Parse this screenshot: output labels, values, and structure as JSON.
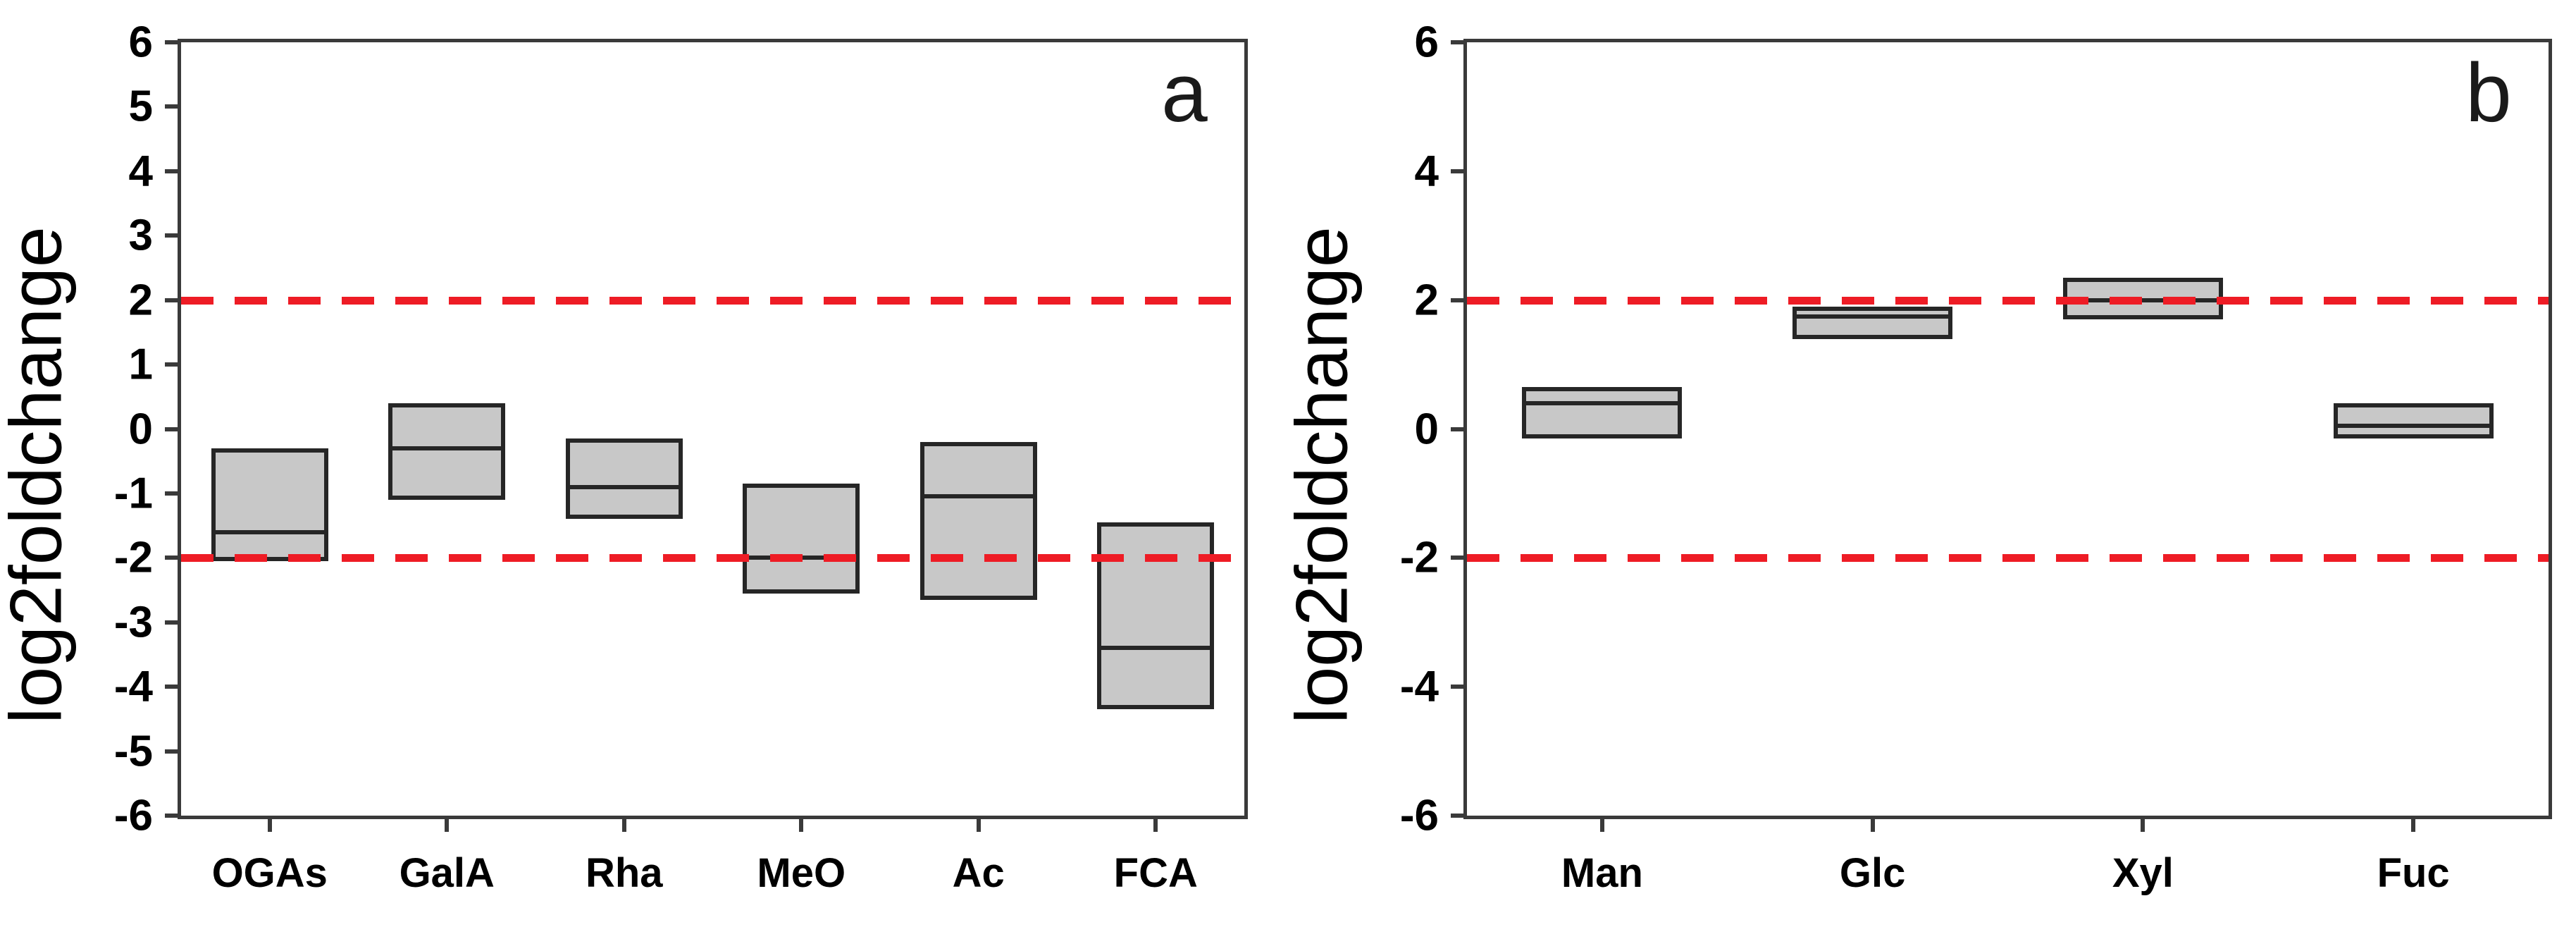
{
  "colors": {
    "box_fill": "#c8c8c8",
    "box_border": "#262626",
    "frame": "#3a3a3a",
    "reference_line": "#ee1c25",
    "text": "#000000",
    "background": "#ffffff"
  },
  "chart_data": [
    {
      "type": "box",
      "panel_label": "a",
      "ylabel": "log2foldchange",
      "ylim": [
        -6,
        6
      ],
      "y_ticks": [
        6,
        5,
        4,
        3,
        2,
        1,
        0,
        -1,
        -2,
        -3,
        -4,
        -5,
        -6
      ],
      "reference_lines": [
        2,
        -2
      ],
      "grid": false,
      "categories": [
        "OGAs",
        "GalA",
        "Rha",
        "MeO",
        "Ac",
        "FCA"
      ],
      "boxes": [
        {
          "category": "OGAs",
          "q1": -2.05,
          "median": -1.6,
          "q3": -0.3
        },
        {
          "category": "GalA",
          "q1": -1.1,
          "median": -0.3,
          "q3": 0.4
        },
        {
          "category": "Rha",
          "q1": -1.4,
          "median": -0.9,
          "q3": -0.15
        },
        {
          "category": "MeO",
          "q1": -2.55,
          "median": -2.0,
          "q3": -0.85
        },
        {
          "category": "Ac",
          "q1": -2.65,
          "median": -1.05,
          "q3": -0.2
        },
        {
          "category": "FCA",
          "q1": -4.35,
          "median": -3.4,
          "q3": -1.45
        }
      ]
    },
    {
      "type": "box",
      "panel_label": "b",
      "ylabel": "log2foldchange",
      "ylim": [
        -6,
        6
      ],
      "y_ticks": [
        6,
        4,
        2,
        0,
        -2,
        -4,
        -6
      ],
      "reference_lines": [
        2,
        -2
      ],
      "grid": false,
      "categories": [
        "Man",
        "Glc",
        "Xyl",
        "Fuc"
      ],
      "boxes": [
        {
          "category": "Man",
          "q1": -0.15,
          "median": 0.4,
          "q3": 0.65
        },
        {
          "category": "Glc",
          "q1": 1.4,
          "median": 1.75,
          "q3": 1.9
        },
        {
          "category": "Xyl",
          "q1": 1.7,
          "median": 2.0,
          "q3": 2.35
        },
        {
          "category": "Fuc",
          "q1": -0.15,
          "median": 0.05,
          "q3": 0.4
        }
      ]
    }
  ]
}
